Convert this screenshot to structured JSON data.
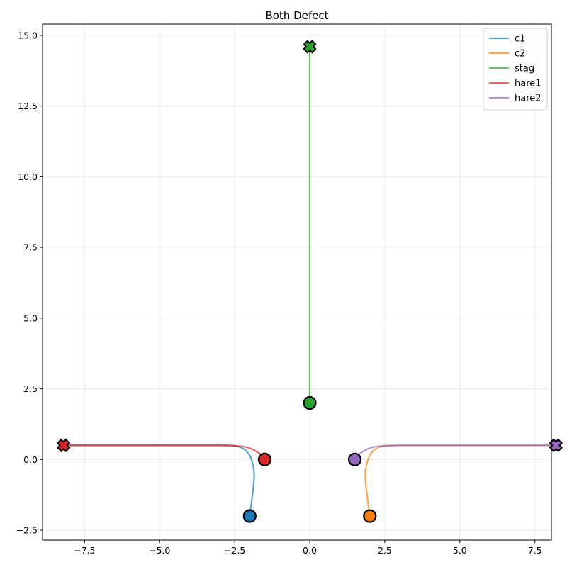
{
  "chart_data": {
    "type": "line",
    "title": "Both Defect",
    "xlabel": "",
    "ylabel": "",
    "xlim": [
      -8.9,
      8.05
    ],
    "ylim": [
      -2.85,
      15.4
    ],
    "xticks": [
      -7.5,
      -5.0,
      -2.5,
      0.0,
      2.5,
      5.0,
      7.5
    ],
    "xtick_labels": [
      "−7.5",
      "−5.0",
      "−2.5",
      "0.0",
      "2.5",
      "5.0",
      "7.5"
    ],
    "yticks": [
      -2.5,
      0.0,
      2.5,
      5.0,
      7.5,
      10.0,
      12.5,
      15.0
    ],
    "ytick_labels": [
      "−2.5",
      "0.0",
      "2.5",
      "5.0",
      "7.5",
      "10.0",
      "12.5",
      "15.0"
    ],
    "grid": true,
    "legend_position": "top-right",
    "series": [
      {
        "name": "c1",
        "color": "#1f77b4",
        "start": [
          -2.0,
          -2.0
        ],
        "end": [
          -8.2,
          0.5
        ],
        "points": [
          [
            -2.0,
            -2.0
          ],
          [
            -1.95,
            -1.6
          ],
          [
            -1.88,
            -1.0
          ],
          [
            -1.85,
            -0.5
          ],
          [
            -1.9,
            -0.15
          ],
          [
            -2.0,
            0.15
          ],
          [
            -2.2,
            0.38
          ],
          [
            -2.5,
            0.48
          ],
          [
            -3.0,
            0.5
          ],
          [
            -5.0,
            0.5
          ],
          [
            -8.2,
            0.5
          ]
        ]
      },
      {
        "name": "c2",
        "color": "#ff7f0e",
        "start": [
          2.0,
          -2.0
        ],
        "end": [
          8.2,
          0.5
        ],
        "points": [
          [
            2.0,
            -2.0
          ],
          [
            1.95,
            -1.6
          ],
          [
            1.88,
            -1.0
          ],
          [
            1.85,
            -0.5
          ],
          [
            1.9,
            -0.15
          ],
          [
            2.0,
            0.15
          ],
          [
            2.2,
            0.38
          ],
          [
            2.5,
            0.48
          ],
          [
            3.0,
            0.5
          ],
          [
            5.0,
            0.5
          ],
          [
            8.2,
            0.5
          ]
        ]
      },
      {
        "name": "stag",
        "color": "#2ca02c",
        "start": [
          0.0,
          2.0
        ],
        "end": [
          0.0,
          14.6
        ],
        "points": [
          [
            0.0,
            2.0
          ],
          [
            0.0,
            14.6
          ]
        ]
      },
      {
        "name": "hare1",
        "color": "#d62728",
        "start": [
          -1.5,
          0.0
        ],
        "end": [
          -8.2,
          0.5
        ],
        "points": [
          [
            -1.5,
            0.0
          ],
          [
            -1.6,
            0.15
          ],
          [
            -1.8,
            0.3
          ],
          [
            -2.05,
            0.42
          ],
          [
            -2.4,
            0.48
          ],
          [
            -3.0,
            0.5
          ],
          [
            -5.0,
            0.5
          ],
          [
            -8.2,
            0.5
          ]
        ]
      },
      {
        "name": "hare2",
        "color": "#9467bd",
        "start": [
          1.5,
          0.0
        ],
        "end": [
          8.2,
          0.5
        ],
        "points": [
          [
            1.5,
            0.0
          ],
          [
            1.6,
            0.15
          ],
          [
            1.8,
            0.3
          ],
          [
            2.05,
            0.42
          ],
          [
            2.4,
            0.48
          ],
          [
            3.0,
            0.5
          ],
          [
            5.0,
            0.5
          ],
          [
            8.2,
            0.5
          ]
        ]
      }
    ]
  }
}
